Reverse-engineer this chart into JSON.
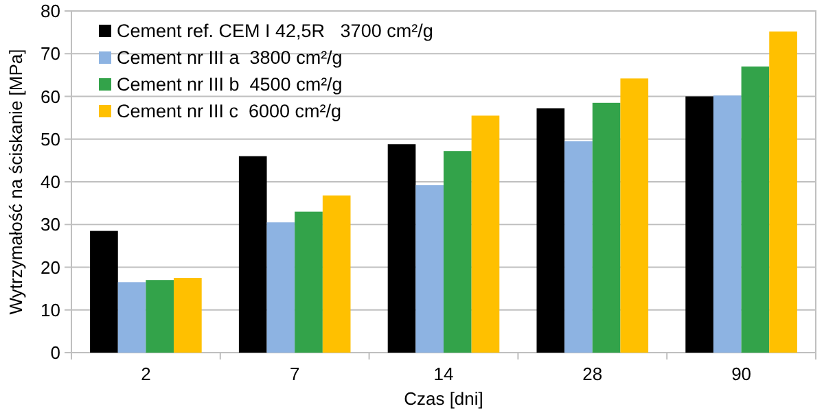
{
  "chart_data": {
    "type": "bar",
    "xlabel": "Czas [dni]",
    "ylabel": "Wytrzymałość na ściskanie [MPa]",
    "categories": [
      "2",
      "7",
      "14",
      "28",
      "90"
    ],
    "series": [
      {
        "name": "Cement ref. CEM I 42,5R   3700 cm²/g",
        "color": "#000000",
        "values": [
          28.5,
          46,
          48.8,
          57.2,
          60
        ]
      },
      {
        "name": "Cement nr III a  3800 cm²/g",
        "color": "#8db3e2",
        "values": [
          16.5,
          30.5,
          39.2,
          49.5,
          60.2
        ]
      },
      {
        "name": "Cement nr III b  4500 cm²/g",
        "color": "#33a34a",
        "values": [
          17,
          33,
          47.2,
          58.5,
          67
        ]
      },
      {
        "name": "Cement nr III c  6000 cm²/g",
        "color": "#ffc000",
        "values": [
          17.5,
          36.8,
          55.5,
          64.2,
          75.2
        ]
      }
    ],
    "ylim": [
      0,
      80
    ],
    "yticks": [
      0,
      10,
      20,
      30,
      40,
      50,
      60,
      70,
      80
    ],
    "grid": "y",
    "legend": "top left"
  }
}
